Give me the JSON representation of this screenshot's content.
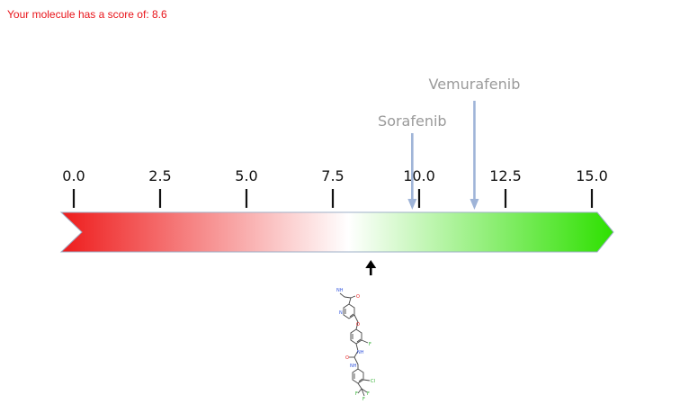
{
  "header": {
    "score_text": "Your molecule has a score of: 8.6"
  },
  "scale": {
    "min": 0,
    "max": 15,
    "ticks": [
      "0.0",
      "2.5",
      "5.0",
      "7.5",
      "10.0",
      "12.5",
      "15.0"
    ],
    "gradient_colors": [
      "#ee1c1c",
      "#ffffff",
      "#2ee000"
    ]
  },
  "molecule": {
    "score": 8.6
  },
  "references": [
    {
      "name": "Sorafenib",
      "score": 9.8
    },
    {
      "name": "Vemurafenib",
      "score": 11.6
    }
  ],
  "structure": {
    "atoms": {
      "nh": "NH",
      "o1": "O",
      "n_pyr": "N",
      "o_ether": "O",
      "f": "F",
      "nh2": "NH",
      "o_urea": "O",
      "nh3": "NH",
      "cl": "Cl",
      "f1": "F",
      "f2": "F",
      "f3": "F"
    }
  }
}
